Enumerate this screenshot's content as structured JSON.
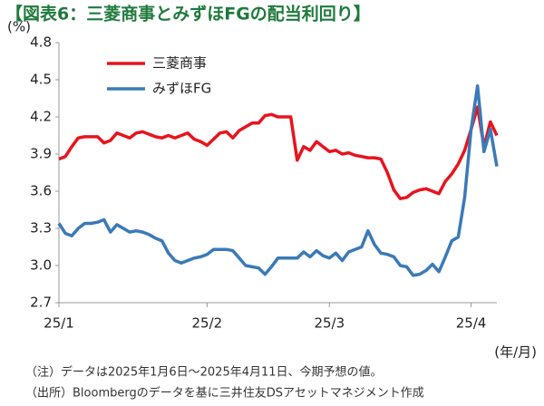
{
  "chart_data": {
    "type": "line",
    "title": "【図表6：三菱商事とみずほFGの配当利回り】",
    "y_label": "(%)",
    "x_label": "(年/月)",
    "categories": [
      "25/1",
      null,
      null,
      null,
      null,
      null,
      null,
      null,
      null,
      null,
      null,
      null,
      null,
      null,
      null,
      null,
      null,
      null,
      null,
      null,
      null,
      null,
      null,
      "25/2",
      null,
      null,
      null,
      null,
      null,
      null,
      null,
      null,
      null,
      null,
      null,
      null,
      null,
      null,
      null,
      null,
      null,
      null,
      "25/3",
      null,
      null,
      null,
      null,
      null,
      null,
      null,
      null,
      null,
      null,
      null,
      null,
      null,
      null,
      null,
      null,
      null,
      null,
      null,
      null,
      null,
      "25/4",
      null,
      null,
      null,
      null
    ],
    "series": [
      {
        "name": "三菱商事",
        "color": "#e8141e",
        "values": [
          3.86,
          3.88,
          3.96,
          4.03,
          4.04,
          4.04,
          4.04,
          3.99,
          4.01,
          4.07,
          4.05,
          4.03,
          4.07,
          4.08,
          4.06,
          4.04,
          4.03,
          4.05,
          4.03,
          4.05,
          4.07,
          4.02,
          4.0,
          3.97,
          4.02,
          4.07,
          4.08,
          4.03,
          4.09,
          4.12,
          4.15,
          4.15,
          4.21,
          4.22,
          4.2,
          4.2,
          4.2,
          3.85,
          3.96,
          3.93,
          4.0,
          3.96,
          3.92,
          3.93,
          3.9,
          3.91,
          3.89,
          3.88,
          3.87,
          3.87,
          3.86,
          3.75,
          3.61,
          3.54,
          3.55,
          3.59,
          3.61,
          3.62,
          3.6,
          3.58,
          3.68,
          3.74,
          3.82,
          3.93,
          4.1,
          4.28,
          3.96,
          4.16,
          4.05
        ]
      },
      {
        "name": "みずほFG",
        "color": "#3a7ab8",
        "values": [
          3.34,
          3.26,
          3.24,
          3.3,
          3.34,
          3.34,
          3.35,
          3.37,
          3.27,
          3.33,
          3.3,
          3.27,
          3.28,
          3.27,
          3.25,
          3.22,
          3.2,
          3.1,
          3.04,
          3.02,
          3.04,
          3.06,
          3.07,
          3.09,
          3.13,
          3.13,
          3.13,
          3.12,
          3.06,
          3.0,
          2.99,
          2.98,
          2.93,
          2.99,
          3.06,
          3.06,
          3.06,
          3.06,
          3.11,
          3.07,
          3.12,
          3.08,
          3.06,
          3.1,
          3.04,
          3.11,
          3.13,
          3.15,
          3.28,
          3.17,
          3.1,
          3.09,
          3.07,
          3.0,
          2.99,
          2.92,
          2.93,
          2.96,
          3.01,
          2.95,
          3.07,
          3.2,
          3.23,
          3.55,
          4.1,
          4.45,
          3.92,
          4.1,
          3.8
        ]
      }
    ],
    "ylim": [
      2.7,
      4.8
    ],
    "yticks": [
      2.7,
      {
        "value": 3,
        "label": "3.0"
      },
      3.3,
      3.6,
      3.9,
      4.2,
      4.5,
      4.8
    ],
    "legend": "top-left",
    "notes": [
      "（注）データは2025年1月6日～2025年4月11日、今期予想の値。",
      "（出所）Bloombergのデータを基に三井住友DSアセットマネジメント作成"
    ]
  }
}
